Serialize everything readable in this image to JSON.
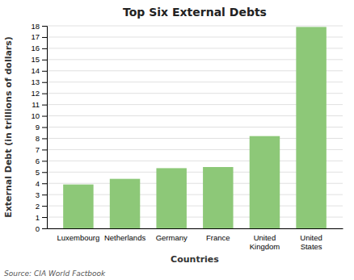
{
  "chart_data": {
    "type": "bar",
    "title": "Top Six External Debts",
    "categories": [
      "Luxembourg",
      "Netherlands",
      "Germany",
      "France",
      "United\nKingdom",
      "United\nStates"
    ],
    "values": [
      3.9,
      4.4,
      5.35,
      5.45,
      8.2,
      17.9
    ],
    "color": "#8DC878",
    "xlabel": "Countries",
    "ylabel": "External Debt (in trillions of dollars)",
    "ylim": [
      0,
      18
    ],
    "yticks": [
      0,
      1,
      2,
      3,
      4,
      5,
      6,
      7,
      8,
      9,
      10,
      11,
      12,
      13,
      14,
      15,
      16,
      17,
      18
    ],
    "grid": true,
    "source": "Source: CIA World Factbook"
  }
}
